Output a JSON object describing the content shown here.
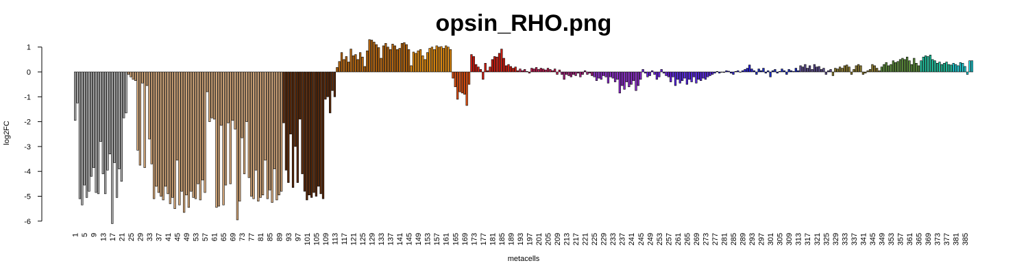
{
  "chart_data": {
    "type": "bar",
    "title": "opsin_RHO.png",
    "xlabel": "metacells",
    "ylabel": "log2FC",
    "ylim": [
      -6,
      1
    ],
    "yticks": [
      1,
      0,
      -1,
      -2,
      -3,
      -4,
      -5,
      -6
    ],
    "xtick_start": 1,
    "xtick_step": 4,
    "xtick_end": 393,
    "grid": false,
    "legend": "none",
    "groups": [
      {
        "color": "#aaaaaa",
        "values": [
          -1.95,
          -1.25,
          -5.1,
          -5.35,
          -4.55,
          -5.05,
          -4.8,
          -4.2,
          -3.85,
          -4.85,
          -4.9,
          -2.8,
          -4.1,
          -4.9,
          -3.95,
          -3.3,
          -6.1,
          -3.65,
          -5.05,
          -3.9,
          -4.4,
          -1.85,
          -1.65
        ]
      },
      {
        "color": "#d2a679",
        "values": [
          -0.1,
          -0.2,
          -0.3,
          -0.35,
          -3.15,
          -3.75,
          -0.45,
          -3.85,
          -0.55,
          -2.7,
          -3.7,
          -5.1,
          -4.6,
          -4.85,
          -5.0,
          -5.15,
          -4.6,
          -4.9,
          -5.3,
          -5.05,
          -5.5,
          -3.55,
          -5.35,
          -4.8,
          -5.65,
          -4.95,
          -5.45,
          -4.8,
          -5.05,
          -5.1,
          -4.5,
          -5.15,
          -4.35,
          -4.85,
          -0.8,
          -2.0,
          -1.85,
          -1.9,
          -5.45,
          -5.4,
          -2.15,
          -5.35,
          -4.55,
          -2.05,
          -4.5,
          -1.95,
          -2.3,
          -5.95,
          -5.2,
          -2.65,
          -4.1,
          -2.0,
          -4.25,
          -5.0,
          -5.1,
          -3.95,
          -5.2,
          -5.05,
          -4.95,
          -3.55,
          -5.1,
          -4.75,
          -5.25,
          -3.9,
          -5.15,
          -4.95,
          -4.8
        ]
      },
      {
        "color": "#5c2a0a",
        "values": [
          -2.05,
          -3.95,
          -4.45,
          -2.5,
          -4.65,
          -3.0,
          -4.45,
          -1.9,
          -4.1,
          -4.8,
          -5.15,
          -4.95,
          -5.05,
          -4.85,
          -5.0,
          -4.6,
          -4.9,
          -5.1,
          -1.1,
          -1.0,
          -1.65,
          -0.75,
          -1.0
        ]
      },
      {
        "color": "#b8670f",
        "values": [
          0.18,
          0.42,
          0.78,
          0.5,
          0.62,
          0.4,
          0.92,
          0.65,
          0.7,
          0.5,
          0.78,
          0.6,
          0.22,
          0.85,
          1.3,
          1.28,
          1.2,
          1.1,
          0.98,
          0.55,
          1.05,
          1.15,
          1.0,
          0.9,
          1.12,
          1.05,
          0.9,
          0.95,
          1.15,
          1.18,
          1.1,
          0.9
        ]
      },
      {
        "color": "#e08a10",
        "values": [
          0.25,
          0.8,
          0.75,
          0.85,
          0.9,
          0.65,
          0.5,
          0.78,
          0.95,
          1.0,
          0.9,
          1.05,
          1.0,
          1.02,
          0.95,
          1.05,
          1.0,
          0.9
        ]
      },
      {
        "color": "#e05010",
        "values": [
          -0.25,
          -0.6,
          -1.1,
          -0.8,
          -0.85,
          -0.9,
          -1.35,
          -0.5
        ]
      },
      {
        "color": "#d01c10",
        "values": [
          0.7,
          0.62,
          0.3,
          0.2,
          0.1,
          -0.3,
          0.35,
          0.05,
          0.2,
          0.5,
          0.62,
          0.6,
          0.75,
          0.92,
          0.55,
          0.25,
          0.3,
          0.22,
          0.15,
          0.2,
          0.05
        ]
      },
      {
        "color": "#c01a50",
        "values": [
          0.12,
          0.05,
          0.1,
          0.02,
          -0.05,
          0.15,
          0.12,
          0.18,
          0.1,
          0.15,
          0.12,
          0.08,
          0.15,
          0.1,
          0.05,
          0.12,
          -0.1,
          0.08
        ]
      },
      {
        "color": "#a0207a",
        "values": [
          -0.1,
          -0.3,
          -0.1,
          -0.15,
          -0.2,
          -0.1,
          -0.15,
          -0.05,
          -0.2,
          -0.1,
          0.05,
          -0.1,
          -0.05,
          -0.15
        ]
      },
      {
        "color": "#8a2bc8",
        "values": [
          -0.2,
          -0.35,
          -0.25,
          -0.3,
          -0.15,
          -0.2,
          -0.45,
          -0.2,
          -0.25,
          -0.4,
          -0.3,
          -0.85,
          -0.55,
          -0.7,
          -0.4,
          -0.6,
          -0.5,
          -0.35,
          -0.75,
          -0.55,
          -0.3
        ]
      },
      {
        "color": "#6a1fe0",
        "values": [
          0.1,
          -0.05,
          -0.2,
          -0.15,
          0.05,
          -0.1,
          -0.3,
          -0.2,
          0.1,
          -0.05,
          -0.15,
          -0.2,
          -0.4
        ]
      },
      {
        "color": "#5a28e6",
        "values": [
          -0.2,
          -0.55,
          -0.3,
          -0.45,
          -0.35,
          -0.25,
          -0.5,
          -0.3,
          -0.4,
          -0.2,
          -0.45,
          -0.3,
          -0.35,
          -0.25,
          -0.3,
          -0.2,
          -0.15,
          -0.1
        ]
      },
      {
        "color": "#2a22d8",
        "values": [
          -0.05,
          0.02,
          -0.05,
          0.0,
          -0.02,
          0.05,
          0.03,
          -0.05,
          -0.1,
          0.02,
          0.05,
          0.0,
          0.05,
          0.1,
          0.15,
          0.28,
          0.12,
          0.05
        ]
      },
      {
        "color": "#1a2ac0",
        "values": [
          -0.1,
          0.12,
          0.05,
          0.15,
          -0.05,
          0.05,
          -0.2,
          0.05,
          0.1,
          -0.05,
          0.02,
          0.12,
          0.05,
          -0.1,
          0.1,
          0.05,
          0.02,
          0.15,
          0.05
        ]
      },
      {
        "color": "#5a4a8a",
        "values": [
          0.25,
          0.2,
          0.3,
          0.15,
          0.25,
          0.1,
          0.3,
          0.2,
          0.22,
          0.1,
          0.15,
          -0.1,
          0.05,
          0.1
        ]
      },
      {
        "color": "#8a7a30",
        "values": [
          -0.15,
          0.15,
          0.12,
          0.2,
          0.15,
          0.25,
          0.28,
          0.2,
          -0.1,
          0.1,
          0.25,
          0.3,
          0.25,
          -0.1,
          -0.05,
          0.05,
          0.1,
          0.3,
          0.25,
          0.15,
          0.05
        ]
      },
      {
        "color": "#5a8a3a",
        "values": [
          0.2,
          0.3,
          0.38,
          0.25,
          0.3,
          0.45,
          0.38,
          0.42,
          0.5,
          0.55,
          0.5,
          0.6,
          0.45,
          0.3,
          0.55,
          0.35,
          0.25
        ]
      },
      {
        "color": "#20c4a0",
        "values": [
          0.45,
          0.6,
          0.65,
          0.62,
          0.68,
          0.5,
          0.45,
          0.35,
          0.4,
          0.3,
          0.35,
          0.4,
          0.3,
          0.28
        ]
      },
      {
        "color": "#22d0d8",
        "values": [
          0.35,
          0.3,
          0.25,
          0.38,
          0.35,
          0.22,
          -0.1,
          0.45,
          0.45
        ]
      }
    ]
  }
}
